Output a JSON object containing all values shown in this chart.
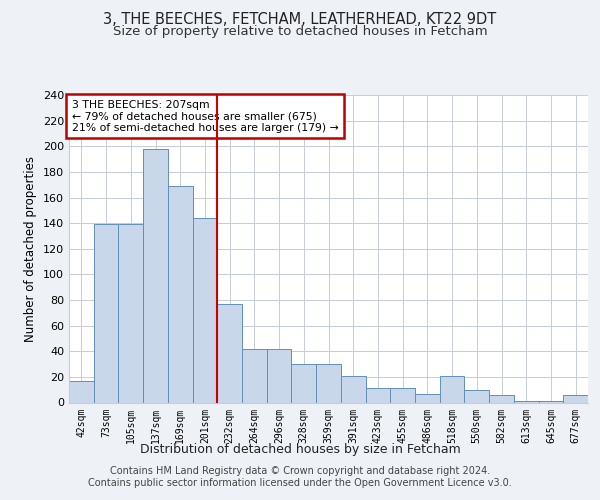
{
  "title1": "3, THE BEECHES, FETCHAM, LEATHERHEAD, KT22 9DT",
  "title2": "Size of property relative to detached houses in Fetcham",
  "xlabel": "Distribution of detached houses by size in Fetcham",
  "ylabel": "Number of detached properties",
  "categories": [
    "42sqm",
    "73sqm",
    "105sqm",
    "137sqm",
    "169sqm",
    "201sqm",
    "232sqm",
    "264sqm",
    "296sqm",
    "328sqm",
    "359sqm",
    "391sqm",
    "423sqm",
    "455sqm",
    "486sqm",
    "518sqm",
    "550sqm",
    "582sqm",
    "613sqm",
    "645sqm",
    "677sqm"
  ],
  "values": [
    17,
    139,
    139,
    198,
    169,
    144,
    77,
    42,
    42,
    30,
    30,
    21,
    11,
    11,
    7,
    21,
    10,
    6,
    1,
    1,
    6
  ],
  "bar_color": "#c8d8ea",
  "bar_edge_color": "#6090b8",
  "ylim": [
    0,
    240
  ],
  "yticks": [
    0,
    20,
    40,
    60,
    80,
    100,
    120,
    140,
    160,
    180,
    200,
    220,
    240
  ],
  "red_line_index": 6,
  "annotation_text": "3 THE BEECHES: 207sqm\n← 79% of detached houses are smaller (675)\n21% of semi-detached houses are larger (179) →",
  "footer": "Contains HM Land Registry data © Crown copyright and database right 2024.\nContains public sector information licensed under the Open Government Licence v3.0.",
  "bg_color": "#eef2f7",
  "plot_bg_color": "#ffffff",
  "grid_color": "#c5cdd8",
  "annotation_box_color": "#bb0000",
  "title1_fontsize": 10.5,
  "title2_fontsize": 9.5
}
